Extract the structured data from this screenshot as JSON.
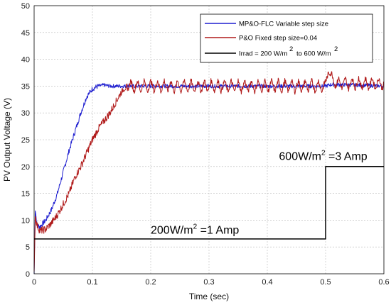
{
  "chart_data": {
    "type": "line",
    "title": "",
    "xlabel": "Time (sec)",
    "ylabel": "PV Output Voltage (V)",
    "xlim": [
      0,
      0.6
    ],
    "ylim": [
      0,
      50
    ],
    "xticks": [
      "0",
      "0.1",
      "0.2",
      "0.3",
      "0.4",
      "0.5",
      "0.6"
    ],
    "yticks": [
      "0",
      "5",
      "10",
      "15",
      "20",
      "25",
      "30",
      "35",
      "40",
      "45",
      "50"
    ],
    "grid": true,
    "legend_placement": "top-right",
    "legend": {
      "line1": "MP&O-FLC Variable step size",
      "line2": "P&O Fixed step size=0.04",
      "line3_part1": "Irrad = 200 W/m",
      "line3_sup1": "2",
      "line3_part2": "to 600 W/m",
      "line3_sup2": "2"
    },
    "series": [
      {
        "name": "MP&O-FLC Variable step size",
        "color": "#1f1fd0",
        "x": [
          0,
          0.002,
          0.005,
          0.01,
          0.02,
          0.03,
          0.04,
          0.05,
          0.06,
          0.07,
          0.08,
          0.09,
          0.1,
          0.11,
          0.12,
          0.13,
          0.15,
          0.2,
          0.3,
          0.4,
          0.5,
          0.51,
          0.55,
          0.6
        ],
        "y": [
          0,
          12,
          9,
          8.8,
          10,
          12,
          15,
          19,
          23,
          26.5,
          30,
          33,
          34.5,
          35,
          35.2,
          35,
          35,
          35,
          35,
          35,
          35,
          35.3,
          35.2,
          35
        ]
      },
      {
        "name": "P&O Fixed step size=0.04",
        "color": "#b01a1a",
        "x": [
          0,
          0.002,
          0.005,
          0.01,
          0.02,
          0.03,
          0.04,
          0.05,
          0.06,
          0.07,
          0.08,
          0.09,
          0.1,
          0.11,
          0.12,
          0.13,
          0.14,
          0.15,
          0.16,
          0.17,
          0.2,
          0.3,
          0.4,
          0.5,
          0.505,
          0.51,
          0.52,
          0.55,
          0.6
        ],
        "y": [
          0,
          11,
          9,
          8,
          8.3,
          9.5,
          11,
          13,
          15,
          18,
          20,
          22.5,
          25,
          27,
          28.5,
          30,
          32,
          34,
          35,
          35,
          35,
          35,
          35,
          35,
          38.5,
          36.5,
          35.5,
          35.5,
          35.5
        ]
      },
      {
        "name": "Irrad = 200 W/m2 to 600 W/m2",
        "color": "#000000",
        "x": [
          0,
          0.5,
          0.5,
          0.6
        ],
        "y": [
          6.5,
          6.5,
          20,
          20
        ]
      }
    ],
    "annotations": [
      {
        "x": 0.2,
        "y": 7.5,
        "text_main": "200W/m",
        "text_sup": "2",
        "text_rest": " =1 Amp"
      },
      {
        "x": 0.42,
        "y": 21.2,
        "text_main": "600W/m",
        "text_sup": "2",
        "text_rest": " =3 Amp"
      }
    ]
  }
}
